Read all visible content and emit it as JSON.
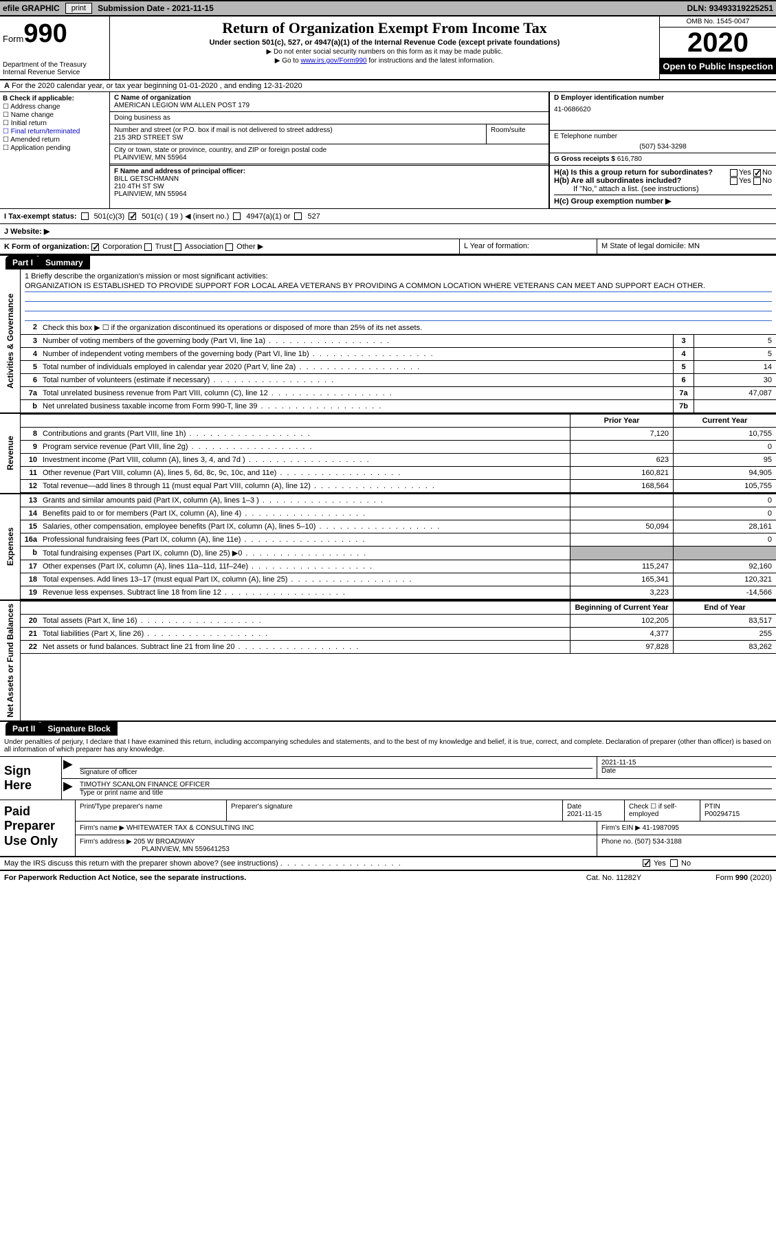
{
  "topbar": {
    "efile": "efile GRAPHIC",
    "print": "print",
    "submission_label": "Submission Date -",
    "submission_date": "2021-11-15",
    "dln_label": "DLN:",
    "dln": "93493319225251"
  },
  "header": {
    "form_word": "Form",
    "form_num": "990",
    "dept1": "Department of the Treasury",
    "dept2": "Internal Revenue Service",
    "title": "Return of Organization Exempt From Income Tax",
    "subtitle": "Under section 501(c), 527, or 4947(a)(1) of the Internal Revenue Code (except private foundations)",
    "note1": "▶ Do not enter social security numbers on this form as it may be made public.",
    "note2a": "▶ Go to ",
    "note2link": "www.irs.gov/Form990",
    "note2b": " for instructions and the latest information.",
    "omb": "OMB No. 1545-0047",
    "year": "2020",
    "inspect": "Open to Public Inspection"
  },
  "periodA": "For the 2020 calendar year, or tax year beginning 01-01-2020   , and ending 12-31-2020",
  "boxB": {
    "label": "B Check if applicable:",
    "items": [
      "Address change",
      "Name change",
      "Initial return",
      "Final return/terminated",
      "Amended return",
      "Application pending"
    ]
  },
  "boxC": {
    "label": "C Name of organization",
    "name": "AMERICAN LEGION WM ALLEN POST 179",
    "dba_label": "Doing business as",
    "street_label": "Number and street (or P.O. box if mail is not delivered to street address)",
    "room_label": "Room/suite",
    "street": "215 3RD STREET SW",
    "city_label": "City or town, state or province, country, and ZIP or foreign postal code",
    "city": "PLAINVIEW, MN  55964"
  },
  "boxD": {
    "label": "D Employer identification number",
    "value": "41-0686620"
  },
  "boxE": {
    "label": "E Telephone number",
    "value": "(507) 534-3298"
  },
  "boxG": {
    "label": "G Gross receipts $",
    "value": "616,780"
  },
  "boxF": {
    "label": "F Name and address of principal officer:",
    "name": "BILL GETSCHMANN",
    "addr1": "210 4TH ST SW",
    "addr2": "PLAINVIEW, MN  55964"
  },
  "boxH": {
    "a": "H(a)  Is this a group return for subordinates?",
    "a_yes": "Yes",
    "a_no": "No",
    "b": "H(b)  Are all subordinates included?",
    "b_note": "If \"No,\" attach a list. (see instructions)",
    "c": "H(c)  Group exemption number ▶"
  },
  "statusI": {
    "label": "I   Tax-exempt status:",
    "o1": "501(c)(3)",
    "o2": "501(c) ( 19 ) ◀ (insert no.)",
    "o3": "4947(a)(1) or",
    "o4": "527"
  },
  "websiteJ": "J   Website: ▶",
  "rowK": {
    "label": "K Form of organization:",
    "opts": [
      "Corporation",
      "Trust",
      "Association",
      "Other ▶"
    ],
    "checked": 0
  },
  "rowL": "L Year of formation:",
  "rowM": "M State of legal domicile: MN",
  "part1": {
    "label": "Part I",
    "title": "Summary"
  },
  "vlabels": {
    "gov": "Activities & Governance",
    "rev": "Revenue",
    "exp": "Expenses",
    "net": "Net Assets or Fund Balances"
  },
  "mission": {
    "intro": "1   Briefly describe the organization's mission or most significant activities:",
    "text": "ORGANIZATION IS ESTABLISHED TO PROVIDE SUPPORT FOR LOCAL AREA VETERANS BY PROVIDING A COMMON LOCATION WHERE VETERANS CAN MEET AND SUPPORT EACH OTHER."
  },
  "gov_lines": [
    {
      "n": "2",
      "d": "Check this box ▶ ☐  if the organization discontinued its operations or disposed of more than 25% of its net assets."
    },
    {
      "n": "3",
      "d": "Number of voting members of the governing body (Part VI, line 1a)",
      "c": "3",
      "v": "5"
    },
    {
      "n": "4",
      "d": "Number of independent voting members of the governing body (Part VI, line 1b)",
      "c": "4",
      "v": "5"
    },
    {
      "n": "5",
      "d": "Total number of individuals employed in calendar year 2020 (Part V, line 2a)",
      "c": "5",
      "v": "14"
    },
    {
      "n": "6",
      "d": "Total number of volunteers (estimate if necessary)",
      "c": "6",
      "v": "30"
    },
    {
      "n": "7a",
      "d": "Total unrelated business revenue from Part VIII, column (C), line 12",
      "c": "7a",
      "v": "47,087"
    },
    {
      "n": "b",
      "d": "Net unrelated business taxable income from Form 990-T, line 39",
      "c": "7b",
      "v": ""
    }
  ],
  "col_hdr": {
    "prior": "Prior Year",
    "current": "Current Year"
  },
  "rev_lines": [
    {
      "n": "8",
      "d": "Contributions and grants (Part VIII, line 1h)",
      "p": "7,120",
      "c": "10,755"
    },
    {
      "n": "9",
      "d": "Program service revenue (Part VIII, line 2g)",
      "p": "",
      "c": "0"
    },
    {
      "n": "10",
      "d": "Investment income (Part VIII, column (A), lines 3, 4, and 7d )",
      "p": "623",
      "c": "95"
    },
    {
      "n": "11",
      "d": "Other revenue (Part VIII, column (A), lines 5, 6d, 8c, 9c, 10c, and 11e)",
      "p": "160,821",
      "c": "94,905"
    },
    {
      "n": "12",
      "d": "Total revenue—add lines 8 through 11 (must equal Part VIII, column (A), line 12)",
      "p": "168,564",
      "c": "105,755"
    }
  ],
  "exp_lines": [
    {
      "n": "13",
      "d": "Grants and similar amounts paid (Part IX, column (A), lines 1–3 )",
      "p": "",
      "c": "0"
    },
    {
      "n": "14",
      "d": "Benefits paid to or for members (Part IX, column (A), line 4)",
      "p": "",
      "c": "0"
    },
    {
      "n": "15",
      "d": "Salaries, other compensation, employee benefits (Part IX, column (A), lines 5–10)",
      "p": "50,094",
      "c": "28,161"
    },
    {
      "n": "16a",
      "d": "Professional fundraising fees (Part IX, column (A), line 11e)",
      "p": "",
      "c": "0"
    },
    {
      "n": "b",
      "d": "Total fundraising expenses (Part IX, column (D), line 25) ▶0",
      "p": "SHADE",
      "c": "SHADE"
    },
    {
      "n": "17",
      "d": "Other expenses (Part IX, column (A), lines 11a–11d, 11f–24e)",
      "p": "115,247",
      "c": "92,160"
    },
    {
      "n": "18",
      "d": "Total expenses. Add lines 13–17 (must equal Part IX, column (A), line 25)",
      "p": "165,341",
      "c": "120,321"
    },
    {
      "n": "19",
      "d": "Revenue less expenses. Subtract line 18 from line 12",
      "p": "3,223",
      "c": "-14,566"
    }
  ],
  "net_hdr": {
    "begin": "Beginning of Current Year",
    "end": "End of Year"
  },
  "net_lines": [
    {
      "n": "20",
      "d": "Total assets (Part X, line 16)",
      "p": "102,205",
      "c": "83,517"
    },
    {
      "n": "21",
      "d": "Total liabilities (Part X, line 26)",
      "p": "4,377",
      "c": "255"
    },
    {
      "n": "22",
      "d": "Net assets or fund balances. Subtract line 21 from line 20",
      "p": "97,828",
      "c": "83,262"
    }
  ],
  "part2": {
    "label": "Part II",
    "title": "Signature Block"
  },
  "sig_intro": "Under penalties of perjury, I declare that I have examined this return, including accompanying schedules and statements, and to the best of my knowledge and belief, it is true, correct, and complete. Declaration of preparer (other than officer) is based on all information of which preparer has any knowledge.",
  "sign_here": "Sign Here",
  "sig": {
    "sig_label": "Signature of officer",
    "date_label": "Date",
    "date": "2021-11-15",
    "name": "TIMOTHY SCANLON FINANCE OFFICER",
    "name_label": "Type or print name and title"
  },
  "paid_lbl": "Paid Preparer Use Only",
  "prep": {
    "h1": "Print/Type preparer's name",
    "h2": "Preparer's signature",
    "h3": "Date",
    "h3v": "2021-11-15",
    "h4": "Check ☐ if self-employed",
    "h5": "PTIN",
    "h5v": "P00294715",
    "firm_lbl": "Firm's name   ▶",
    "firm": "WHITEWATER TAX & CONSULTING INC",
    "ein_lbl": "Firm's EIN ▶",
    "ein": "41-1987095",
    "addr_lbl": "Firm's address ▶",
    "addr": "205 W BROADWAY",
    "addr2": "PLAINVIEW, MN  559641253",
    "phone_lbl": "Phone no.",
    "phone": "(507) 534-3188"
  },
  "discuss": "May the IRS discuss this return with the preparer shown above? (see instructions)",
  "discuss_yes": "Yes",
  "discuss_no": "No",
  "footer": {
    "l": "For Paperwork Reduction Act Notice, see the separate instructions.",
    "m": "Cat. No. 11282Y",
    "r": "Form 990 (2020)"
  }
}
